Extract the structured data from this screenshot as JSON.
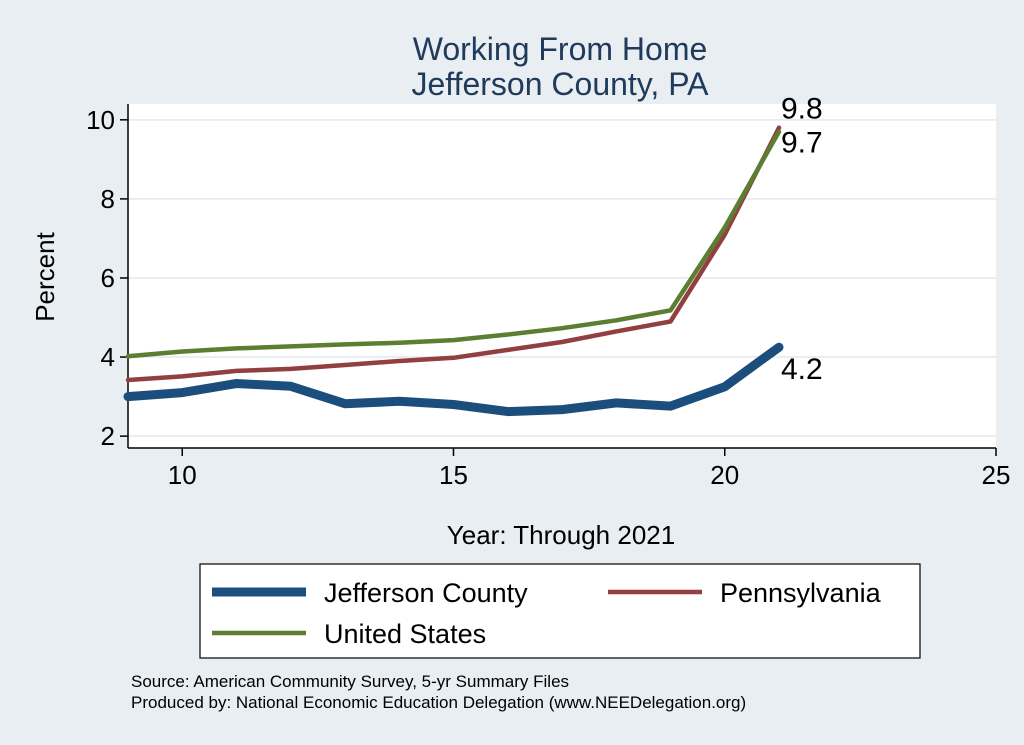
{
  "chart_data": {
    "type": "line",
    "title": [
      "Working From Home",
      "Jefferson County, PA"
    ],
    "xlabel": "Year: Through 2021",
    "ylabel": "Percent",
    "xlim": [
      9,
      25
    ],
    "ylim": [
      1.7,
      10.4
    ],
    "xticks": [
      10,
      15,
      20,
      25
    ],
    "yticks": [
      2,
      4,
      6,
      8,
      10
    ],
    "grid": true,
    "legend_position": "bottom",
    "series": [
      {
        "name": "Jefferson County",
        "color": "#1c4e7d",
        "x": [
          9,
          10,
          11,
          12,
          13,
          14,
          15,
          16,
          17,
          18,
          19,
          20,
          21
        ],
        "y": [
          3.0,
          3.1,
          3.33,
          3.26,
          2.82,
          2.88,
          2.8,
          2.62,
          2.67,
          2.84,
          2.76,
          3.25,
          4.25
        ],
        "end_label": "4.2"
      },
      {
        "name": "Pennsylvania",
        "color": "#923f3f",
        "x": [
          9,
          10,
          11,
          12,
          13,
          14,
          15,
          16,
          17,
          18,
          19,
          20,
          21
        ],
        "y": [
          3.42,
          3.51,
          3.65,
          3.7,
          3.8,
          3.9,
          3.98,
          4.18,
          4.38,
          4.65,
          4.9,
          7.1,
          9.8
        ],
        "end_label": "9.8"
      },
      {
        "name": "United States",
        "color": "#5b7e32",
        "x": [
          9,
          10,
          11,
          12,
          13,
          14,
          15,
          16,
          17,
          18,
          19,
          20,
          21
        ],
        "y": [
          4.02,
          4.14,
          4.22,
          4.27,
          4.32,
          4.36,
          4.43,
          4.57,
          4.73,
          4.93,
          5.18,
          7.28,
          9.7
        ],
        "end_label": "9.7"
      }
    ],
    "notes": [
      "Source: American Community Survey, 5-yr Summary Files",
      "Produced by: National Economic Education Delegation (www.NEEDelegation.org)"
    ]
  }
}
